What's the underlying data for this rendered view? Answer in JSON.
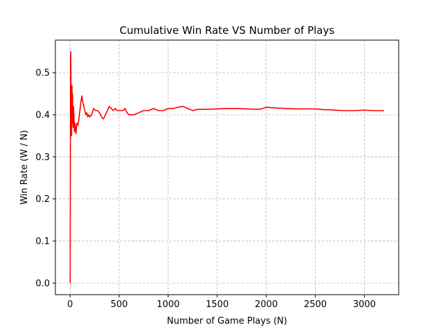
{
  "chart_data": {
    "type": "line",
    "title": "Cumulative Win Rate VS Number of Plays",
    "xlabel": "Number of Game Plays (N)",
    "ylabel": "Win Rate (W / N)",
    "xlim": [
      -150,
      3350
    ],
    "ylim": [
      -0.0275,
      0.5775
    ],
    "xticks": [
      0,
      500,
      1000,
      1500,
      2000,
      2500,
      3000
    ],
    "xtick_labels": [
      "0",
      "500",
      "1000",
      "1500",
      "2000",
      "2500",
      "3000"
    ],
    "yticks": [
      0.0,
      0.1,
      0.2,
      0.3,
      0.4,
      0.5
    ],
    "ytick_labels": [
      "0.0",
      "0.1",
      "0.2",
      "0.3",
      "0.4",
      "0.5"
    ],
    "grid": true,
    "legend": "none",
    "series": [
      {
        "color": "#ff0000",
        "x": [
          1,
          3,
          5,
          7,
          9,
          11,
          13,
          15,
          17,
          19,
          21,
          23,
          25,
          28,
          31,
          35,
          40,
          45,
          50,
          55,
          60,
          65,
          70,
          80,
          90,
          100,
          110,
          120,
          130,
          140,
          150,
          160,
          170,
          180,
          190,
          200,
          220,
          240,
          260,
          280,
          300,
          320,
          340,
          360,
          380,
          400,
          420,
          440,
          460,
          480,
          500,
          520,
          540,
          560,
          580,
          600,
          620,
          650,
          700,
          750,
          800,
          850,
          900,
          950,
          1000,
          1050,
          1100,
          1150,
          1200,
          1250,
          1300,
          1400,
          1500,
          1600,
          1700,
          1800,
          1900,
          1950,
          2000,
          2100,
          2200,
          2300,
          2400,
          2500,
          2600,
          2650,
          2700,
          2800,
          2900,
          3000,
          3100,
          3200
        ],
        "y": [
          0.0,
          0.33,
          0.53,
          0.55,
          0.47,
          0.38,
          0.44,
          0.35,
          0.4,
          0.47,
          0.42,
          0.38,
          0.45,
          0.39,
          0.37,
          0.42,
          0.39,
          0.36,
          0.38,
          0.37,
          0.355,
          0.37,
          0.38,
          0.375,
          0.39,
          0.41,
          0.43,
          0.445,
          0.43,
          0.42,
          0.41,
          0.4,
          0.405,
          0.395,
          0.4,
          0.395,
          0.4,
          0.415,
          0.41,
          0.41,
          0.405,
          0.395,
          0.39,
          0.4,
          0.41,
          0.42,
          0.415,
          0.41,
          0.415,
          0.41,
          0.41,
          0.41,
          0.41,
          0.415,
          0.405,
          0.4,
          0.4,
          0.4,
          0.405,
          0.41,
          0.41,
          0.415,
          0.41,
          0.41,
          0.415,
          0.415,
          0.418,
          0.42,
          0.415,
          0.41,
          0.413,
          0.413,
          0.414,
          0.415,
          0.415,
          0.414,
          0.413,
          0.414,
          0.418,
          0.416,
          0.415,
          0.414,
          0.414,
          0.414,
          0.412,
          0.412,
          0.411,
          0.41,
          0.41,
          0.411,
          0.41,
          0.41
        ]
      }
    ]
  }
}
